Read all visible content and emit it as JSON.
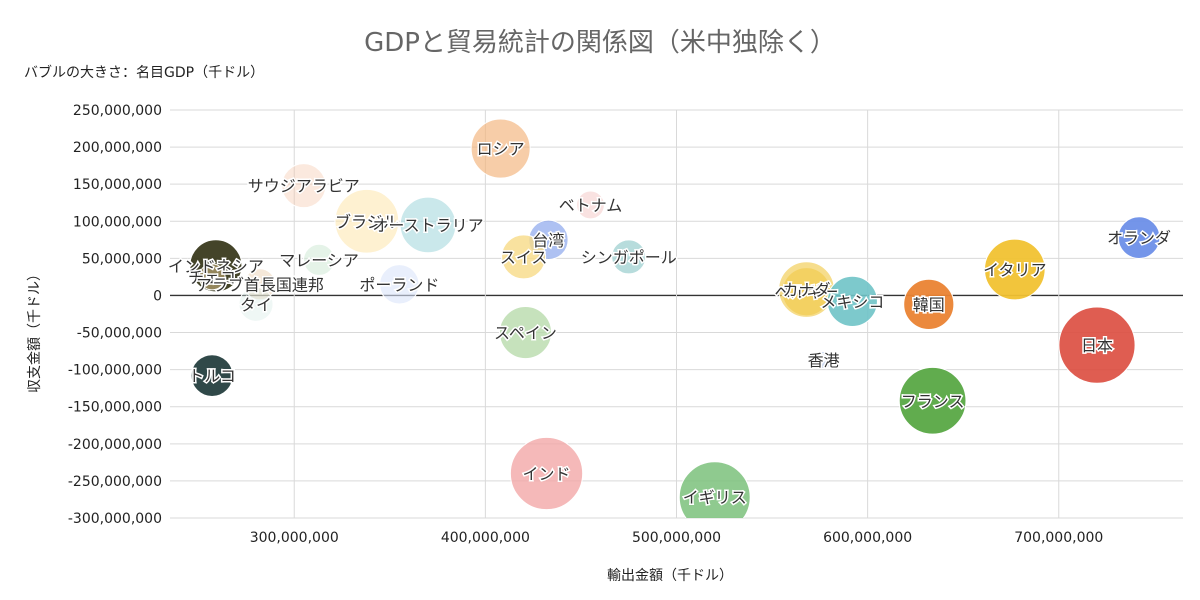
{
  "chart_data": {
    "type": "bubble",
    "title": "GDPと貿易統計の関係図（米中独除く）",
    "subtitle": "バブルの大きさ：名目GDP（千ドル）",
    "xlabel": "輸出金額（千ドル）",
    "ylabel": "収支金額（千ドル）",
    "xlim": [
      235000000,
      765000000
    ],
    "ylim": [
      -300000000,
      250000000
    ],
    "xticks": [
      300000000,
      400000000,
      500000000,
      600000000,
      700000000
    ],
    "xtick_labels": [
      "300,000,000",
      "400,000,000",
      "500,000,000",
      "600,000,000",
      "700,000,000"
    ],
    "yticks": [
      250000000,
      200000000,
      150000000,
      100000000,
      50000000,
      0,
      -50000000,
      -100000000,
      -150000000,
      -200000000,
      -250000000,
      -300000000
    ],
    "ytick_labels": [
      "250,000,000",
      "200,000,000",
      "150,000,000",
      "100,000,000",
      "50,000,000",
      "0",
      "-50,000,000",
      "-100,000,000",
      "-150,000,000",
      "-200,000,000",
      "-250,000,000",
      "-300,000,000"
    ],
    "points": [
      {
        "name": "ロシア",
        "x": 408000000,
        "y": 198000000,
        "size": 1.8,
        "color": "#f2b27a",
        "alpha": 0.65
      },
      {
        "name": "サウジアラビア",
        "x": 305000000,
        "y": 148000000,
        "size": 1.0,
        "color": "#f6c7ac",
        "alpha": 0.4
      },
      {
        "name": "ブラジル",
        "x": 338000000,
        "y": 100000000,
        "size": 2.1,
        "color": "#fde8b2",
        "alpha": 0.6
      },
      {
        "name": "オーストラリア",
        "x": 370000000,
        "y": 95000000,
        "size": 1.6,
        "color": "#a7d9de",
        "alpha": 0.6
      },
      {
        "name": "ベトナム",
        "x": 455000000,
        "y": 122000000,
        "size": 0.4,
        "color": "#f4c6c3",
        "alpha": 0.5
      },
      {
        "name": "台湾",
        "x": 433000000,
        "y": 75000000,
        "size": 0.8,
        "color": "#8ba7ec",
        "alpha": 0.7
      },
      {
        "name": "スイス",
        "x": 420000000,
        "y": 52000000,
        "size": 1.0,
        "color": "#f7db87",
        "alpha": 0.8
      },
      {
        "name": "シンガポール",
        "x": 475000000,
        "y": 52000000,
        "size": 0.6,
        "color": "#a5d3d3",
        "alpha": 0.8
      },
      {
        "name": "インドネシア",
        "x": 259000000,
        "y": 40000000,
        "size": 1.4,
        "color": "#3a3a1e",
        "alpha": 0.95
      },
      {
        "name": "マレーシア",
        "x": 313000000,
        "y": 48000000,
        "size": 0.5,
        "color": "#cce8d2",
        "alpha": 0.5
      },
      {
        "name": "チェコ",
        "x": 257000000,
        "y": 25000000,
        "size": 0.35,
        "color": "#c9b27f",
        "alpha": 0.6
      },
      {
        "name": "アラブ首長国連邦",
        "x": 282000000,
        "y": 15000000,
        "size": 0.5,
        "color": "#ecd1b4",
        "alpha": 0.5
      },
      {
        "name": "ポーランド",
        "x": 355000000,
        "y": 15000000,
        "size": 0.8,
        "color": "#dbe4fa",
        "alpha": 0.6
      },
      {
        "name": "タイ",
        "x": 280000000,
        "y": -12000000,
        "size": 0.6,
        "color": "#d6ebe7",
        "alpha": 0.4
      },
      {
        "name": "スペイン",
        "x": 421000000,
        "y": -50000000,
        "size": 1.4,
        "color": "#b3d8a6",
        "alpha": 0.75
      },
      {
        "name": "トルコ",
        "x": 257000000,
        "y": -108000000,
        "size": 0.9,
        "color": "#253f3f",
        "alpha": 0.95
      },
      {
        "name": "インド",
        "x": 432000000,
        "y": -240000000,
        "size": 2.7,
        "color": "#f1a2a2",
        "alpha": 0.75
      },
      {
        "name": "イギリス",
        "x": 520000000,
        "y": -272000000,
        "size": 2.6,
        "color": "#7bc17b",
        "alpha": 0.85
      },
      {
        "name": "ベルギー",
        "x": 568000000,
        "y": 5000000,
        "size": 1.2,
        "color": "#f2cf5b",
        "alpha": 0.85
      },
      {
        "name": "カナダ",
        "x": 568000000,
        "y": 8000000,
        "size": 1.6,
        "color": "#f2cf5b",
        "alpha": 0.7
      },
      {
        "name": "メキシコ",
        "x": 592000000,
        "y": -8000000,
        "size": 1.3,
        "color": "#6fc3c6",
        "alpha": 0.9
      },
      {
        "name": "韓国",
        "x": 632000000,
        "y": -12000000,
        "size": 1.3,
        "color": "#ea8333",
        "alpha": 0.95
      },
      {
        "name": "イタリア",
        "x": 677000000,
        "y": 35000000,
        "size": 1.9,
        "color": "#f1c232",
        "alpha": 0.95
      },
      {
        "name": "オランダ",
        "x": 742000000,
        "y": 78000000,
        "size": 0.9,
        "color": "#6d8fe8",
        "alpha": 0.95
      },
      {
        "name": "日本",
        "x": 720000000,
        "y": -67000000,
        "size": 3.0,
        "color": "#db4b3e",
        "alpha": 0.9
      },
      {
        "name": "香港",
        "x": 577000000,
        "y": -87000000,
        "size": 0.15,
        "color": "#c9d6ef",
        "alpha": 0.9
      },
      {
        "name": "フランス",
        "x": 634000000,
        "y": -142000000,
        "size": 2.3,
        "color": "#58a845",
        "alpha": 0.95
      }
    ]
  }
}
